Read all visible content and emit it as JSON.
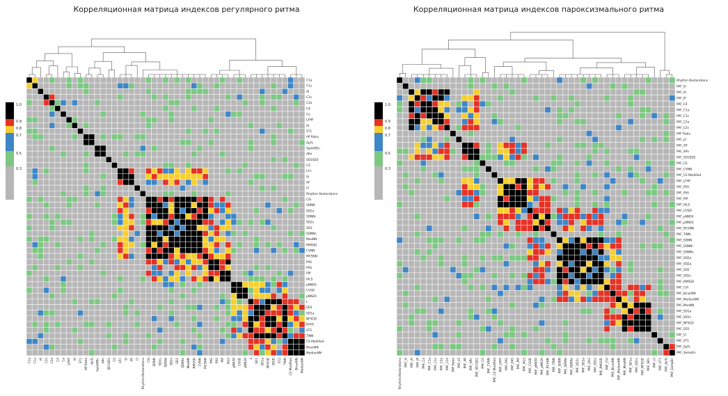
{
  "colors": {
    "gray": "#b7b7b7",
    "green": "#7cc882",
    "blue": "#3f86c6",
    "yellow": "#f6ce2e",
    "red": "#e53226",
    "black": "#000000",
    "grid": "#ffffff"
  },
  "colorbar_ticks": [
    "1.0",
    "0.9",
    "0.8",
    "0.7",
    "0.5",
    "0.3"
  ],
  "chart_data": [
    {
      "type": "heatmap",
      "title": "Корреляционная матрица индексов регулярного ритма",
      "xlabels": [
        "C1a",
        "C1s",
        "AI",
        "C2s",
        "C2a",
        "C4",
        "Ca",
        "LFHF",
        "AI",
        "ST1",
        "AP Ratio",
        "ApTs",
        "SqrtAPEn",
        "APn",
        "SD1SD2",
        "CS",
        "LFn",
        "SI",
        "AF",
        "CI",
        "Rhythm Restorations",
        "CSI",
        "SDNN",
        "SD2u",
        "SDNNi",
        "SD2s",
        "SD2",
        "SDNNs",
        "MeaNN",
        "RMSSD",
        "CVNN",
        "MCSNN",
        "PAS",
        "PSS",
        "PIP",
        "IALS",
        "pNN50",
        "CVSD",
        "pNN20",
        "L",
        "SD1",
        "SD1a",
        "NFSGD",
        "IDVD",
        "ST2",
        "TINN",
        "CS Modified",
        "BinarNN",
        "ModianNN"
      ],
      "ylabels": [
        "C1a",
        "C1s",
        "AI",
        "C2s",
        "C2a",
        "C4",
        "Ca",
        "LFHF",
        "AI",
        "ST1",
        "AP Ratio",
        "ApTs",
        "SqrtAPEn",
        "APn",
        "SD1SD2",
        "CS",
        "LFn",
        "SI",
        "AF",
        "CI",
        "Rhythm Restorations",
        "CSI",
        "SDNN",
        "SD2u",
        "SDNNi",
        "SD2s",
        "SD2",
        "SDNNs",
        "MeaNN",
        "RMSSD",
        "CVNN",
        "MCSNN",
        "PAS",
        "PSS",
        "PIP",
        "IALS",
        "pNN50",
        "CVSD",
        "pNN20",
        "L",
        "SD1",
        "SD1a",
        "NFSGD",
        "IDVD",
        "ST2",
        "TINN",
        "CS Modified",
        "BinarNN",
        "ModianNN"
      ],
      "levels": [
        "0.3",
        "0.5",
        "0.7",
        "0.8",
        "0.9",
        "1.0"
      ],
      "blocks": [
        [
          0,
          2
        ],
        [
          3,
          5
        ],
        [
          10,
          12
        ],
        [
          12,
          14
        ],
        [
          16,
          19
        ],
        [
          21,
          32
        ],
        [
          32,
          36
        ],
        [
          36,
          39
        ],
        [
          39,
          46
        ],
        [
          46,
          49
        ]
      ],
      "colorbar": true
    },
    {
      "type": "heatmap",
      "title": "Корреляционная матрица индексов пароксизмального ритма",
      "xlabels": [
        "Rhythm Restorations",
        "PAF_Si",
        "PAF_AI",
        "PAF_IP",
        "PAF_C4",
        "PAF_C1a",
        "PAF_C1s",
        "PAF_C2a",
        "PAF_C2s",
        "PAF Ratio",
        "PAF_LF",
        "PAF_AP",
        "PAF_APn",
        "PAF_SD1SD2",
        "PAF_CS",
        "PAF_CVNN",
        "PAF_CS Modified",
        "PAF_LFHF",
        "PAF_PSS",
        "PAF_PAS",
        "PAF_PIP",
        "PAF_IALS",
        "PAF_CVSD",
        "PAF_pNN50",
        "PAF_pNN20",
        "PAF_RCVNN",
        "PAF_TINN",
        "PAF_SDNN",
        "PAF_SDNNi",
        "PAF_SDNNs",
        "PAF_SD2u",
        "PAF_SD2a",
        "PAF_SD2",
        "PAF_SD2s",
        "PAF_RMSSD",
        "PAF_CVI",
        "PAF_BinarNN",
        "PAF_MedianNN",
        "PAF_MeaNN",
        "PAF_SD1a",
        "PAF_SD1s",
        "PAF_NFSGD",
        "PAF_SD1",
        "PAF_CI",
        "PAF_ST1",
        "PAF_ApTs",
        "PAF_SampEn"
      ],
      "ylabels": [
        "Rhythm Restorations",
        "PAF_Si",
        "PAF_AI",
        "PAF_IP",
        "PAF_C4",
        "PAF_C1a",
        "PAF_C1s",
        "PAF_C2a",
        "PAF_C2s",
        "PAF Ratio",
        "PAF_LF",
        "PAF_AP",
        "PAF_APn",
        "PAF_SD1SD2",
        "PAF_CS",
        "PAF_CVNN",
        "PAF_CS Modified",
        "PAF_LFHF",
        "PAF_PSS",
        "PAF_PAS",
        "PAF_PIP",
        "PAF_IALS",
        "PAF_CVSD",
        "PAF_pNN50",
        "PAF_pNN20",
        "PAF_RCVNN",
        "PAF_TINN",
        "PAF_SDNN",
        "PAF_SDNNi",
        "PAF_SDNNs",
        "PAF_SD2u",
        "PAF_SD2a",
        "PAF_SD2",
        "PAF_SD2s",
        "PAF_RMSSD",
        "PAF_CVI",
        "PAF_BinarNN",
        "PAF_MedianNN",
        "PAF_MeaNN",
        "PAF_SD1a",
        "PAF_SD1s",
        "PAF_NFSGD",
        "PAF_SD1",
        "PAF_CI",
        "PAF_ST1",
        "PAF_ApTs",
        "PAF_SampEn"
      ],
      "levels": [
        "0.3",
        "0.5",
        "0.7",
        "0.8",
        "0.9",
        "1.0"
      ],
      "blocks": [
        [
          2,
          9
        ],
        [
          11,
          14
        ],
        [
          17,
          22
        ],
        [
          22,
          26
        ],
        [
          27,
          35
        ],
        [
          35,
          38
        ],
        [
          38,
          43
        ],
        [
          45,
          47
        ]
      ],
      "colorbar": true
    }
  ]
}
